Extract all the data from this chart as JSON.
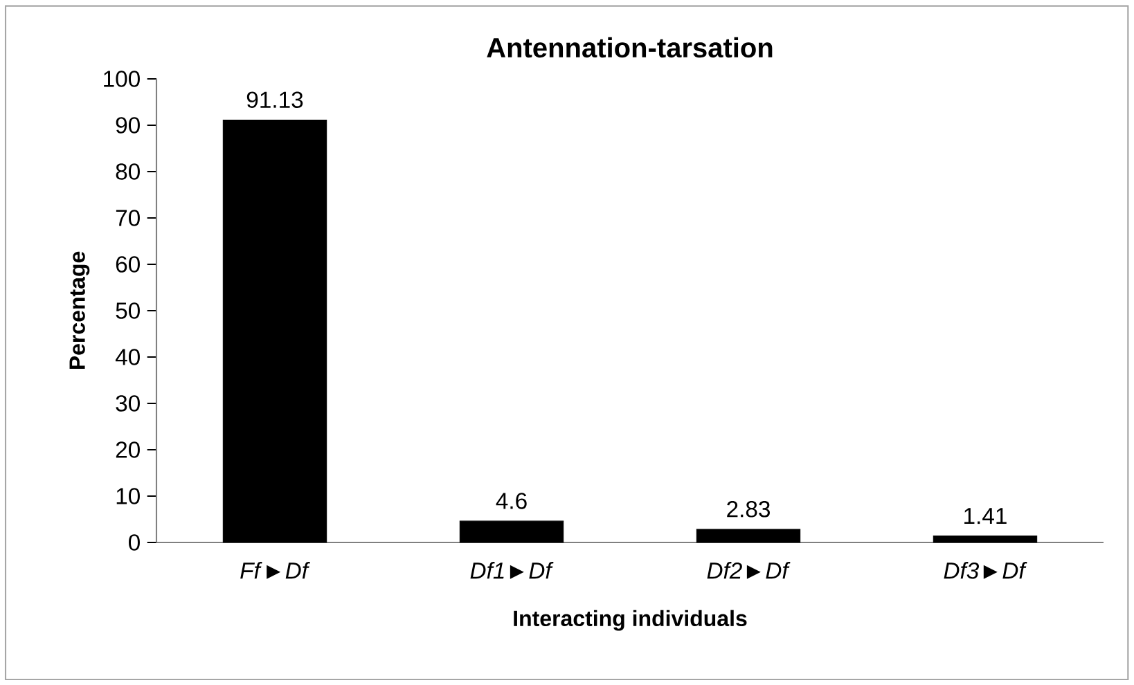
{
  "chart_data": {
    "type": "bar",
    "title": "Antennation-tarsation",
    "xlabel": "Interacting individuals",
    "ylabel": "Percentage",
    "categories": [
      "*Ff*►*Df*",
      "*Df1*►*Df*",
      "*Df2*►*Df*",
      "*Df3*►*Df*"
    ],
    "values": [
      91.13,
      4.6,
      2.83,
      1.41
    ],
    "color": "#000000",
    "ylim": [
      0,
      100
    ],
    "yticks": [
      0,
      10,
      20,
      30,
      40,
      50,
      60,
      70,
      80,
      90,
      100
    ],
    "data_labels": true
  }
}
